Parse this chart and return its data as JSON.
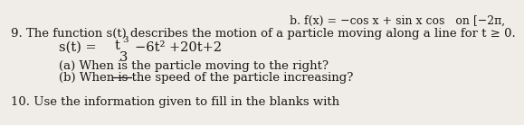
{
  "line0_right": "f(x) = −cos x + sin x cos   on [−2π,",
  "line0_prefix": "b. ",
  "line1": "9. The function s(t) describes the motion of a particle moving along a line for t ≥ 0.",
  "line2_prefix": "s(t) =",
  "line2_num": "t",
  "line2_exp": "3",
  "line2_den": "3",
  "line2_rest": "−6t² +20t+2",
  "line3": "(a) When is the particle moving to the right?",
  "line4": "(b) When is the speed of the particle increasing?",
  "line5": "10. Use the information given to fill in the blanks with",
  "bg_color": "#f0ede8",
  "text_color": "#1a1a1a",
  "font_size": 9.5
}
